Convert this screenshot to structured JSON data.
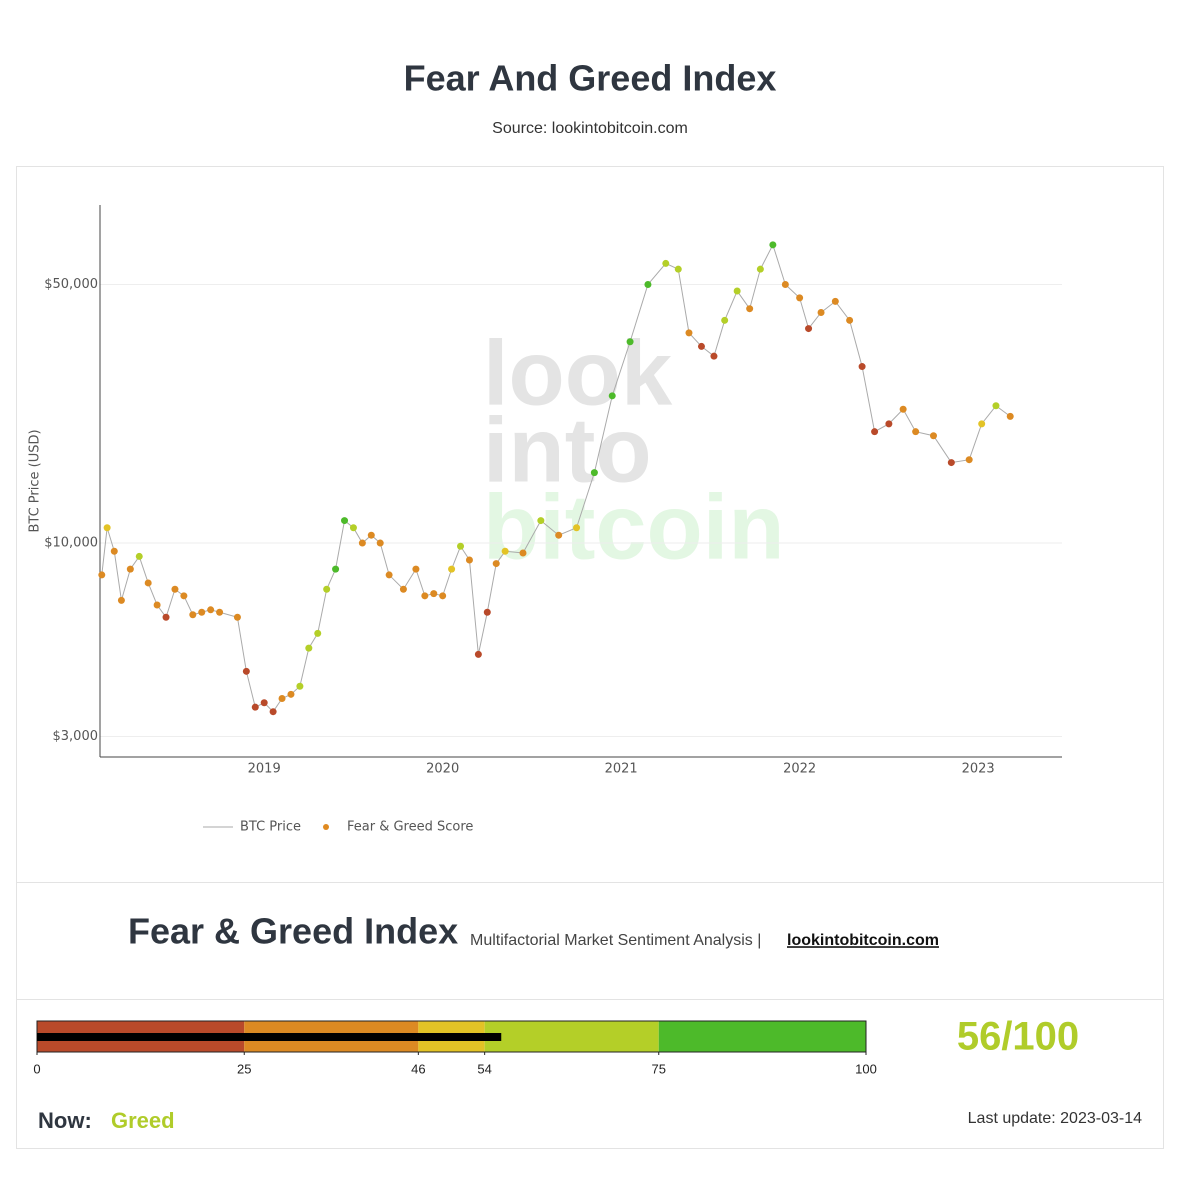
{
  "header": {
    "title": "Fear And Greed Index",
    "subtitle": "Source: lookintobitcoin.com"
  },
  "chart_data": {
    "type": "scatter",
    "y_label": "BTC Price (USD)",
    "watermark": [
      "look",
      "into",
      "bitcoin"
    ],
    "log_y": true,
    "grid": true,
    "xlim": [
      2018.08,
      2023.47
    ],
    "xticks": [
      2019,
      2020,
      2021,
      2022,
      2023
    ],
    "ylim": [
      2640,
      82000
    ],
    "yticks": [
      {
        "value": 3000,
        "label": "$3,000"
      },
      {
        "value": 10000,
        "label": "$10,000"
      },
      {
        "value": 50000,
        "label": "$50,000"
      }
    ],
    "x": [
      2018.09,
      2018.12,
      2018.16,
      2018.2,
      2018.25,
      2018.3,
      2018.35,
      2018.4,
      2018.45,
      2018.5,
      2018.55,
      2018.6,
      2018.65,
      2018.7,
      2018.75,
      2018.85,
      2018.9,
      2018.95,
      2019.0,
      2019.05,
      2019.1,
      2019.15,
      2019.2,
      2019.25,
      2019.3,
      2019.35,
      2019.4,
      2019.45,
      2019.5,
      2019.55,
      2019.6,
      2019.65,
      2019.7,
      2019.78,
      2019.85,
      2019.9,
      2019.95,
      2020.0,
      2020.05,
      2020.1,
      2020.15,
      2020.2,
      2020.25,
      2020.3,
      2020.35,
      2020.45,
      2020.55,
      2020.65,
      2020.75,
      2020.85,
      2020.95,
      2021.05,
      2021.15,
      2021.25,
      2021.32,
      2021.38,
      2021.45,
      2021.52,
      2021.58,
      2021.65,
      2021.72,
      2021.78,
      2021.85,
      2021.92,
      2022.0,
      2022.05,
      2022.12,
      2022.2,
      2022.28,
      2022.35,
      2022.42,
      2022.5,
      2022.58,
      2022.65,
      2022.75,
      2022.85,
      2022.95,
      2023.02,
      2023.1,
      2023.18
    ],
    "series": [
      {
        "name": "BTC Price",
        "color": "#aaaaaa",
        "values": [
          8200,
          11000,
          9500,
          7000,
          8500,
          9200,
          7800,
          6800,
          6300,
          7500,
          7200,
          6400,
          6500,
          6600,
          6500,
          6300,
          4500,
          3600,
          3700,
          3500,
          3800,
          3900,
          4100,
          5200,
          5700,
          7500,
          8500,
          11500,
          11000,
          10000,
          10500,
          10000,
          8200,
          7500,
          8500,
          7200,
          7300,
          7200,
          8500,
          9800,
          9000,
          5000,
          6500,
          8800,
          9500,
          9400,
          11500,
          10500,
          11000,
          15500,
          25000,
          35000,
          50000,
          57000,
          55000,
          37000,
          34000,
          32000,
          40000,
          48000,
          43000,
          55000,
          64000,
          50000,
          46000,
          38000,
          42000,
          45000,
          40000,
          30000,
          20000,
          21000,
          23000,
          20000,
          19500,
          16500,
          16800,
          21000,
          23500,
          22000
        ]
      },
      {
        "name": "Fear & Greed Score",
        "color": "#e08a20",
        "values": [
          30,
          50,
          45,
          30,
          40,
          55,
          35,
          25,
          22,
          45,
          35,
          25,
          30,
          30,
          30,
          25,
          15,
          12,
          22,
          15,
          30,
          45,
          55,
          60,
          65,
          70,
          75,
          82,
          70,
          40,
          45,
          40,
          30,
          30,
          40,
          30,
          32,
          35,
          50,
          55,
          45,
          12,
          15,
          40,
          48,
          45,
          72,
          40,
          50,
          80,
          90,
          80,
          85,
          72,
          60,
          25,
          22,
          20,
          55,
          70,
          45,
          70,
          78,
          35,
          25,
          20,
          35,
          40,
          30,
          20,
          10,
          20,
          40,
          25,
          25,
          22,
          28,
          50,
          55,
          45
        ]
      }
    ]
  },
  "gauge": {
    "title": "Fear & Greed Index",
    "subtitle": "Multifactorial Market Sentiment Analysis |",
    "link": "lookintobitcoin.com",
    "ticks": [
      0,
      25,
      46,
      54,
      75,
      100
    ],
    "band_colors": [
      "#b94a2a",
      "#dc8a23",
      "#e3c326",
      "#b4cf28",
      "#4dba2a"
    ],
    "value": 56,
    "value_label": "56/100",
    "value_color": "#b0cc2a",
    "now_label": "Now:",
    "status": "Greed",
    "last_update": "Last update: 2023-03-14"
  }
}
